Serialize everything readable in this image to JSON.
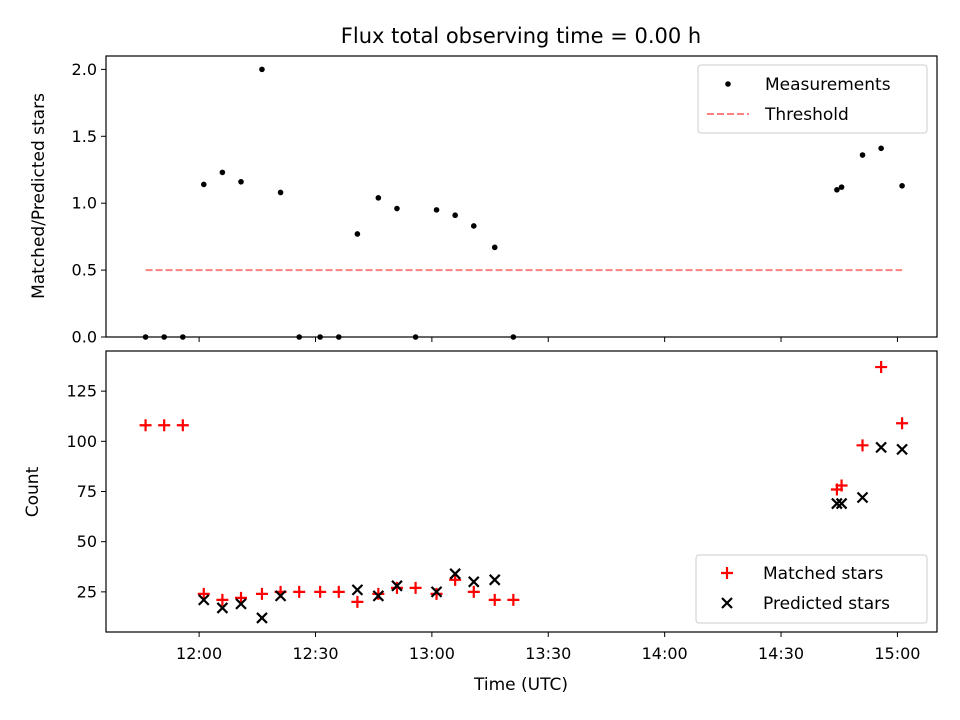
{
  "colors": {
    "measurement": "#000000",
    "threshold": "#ff8080",
    "matched": "#ff0000",
    "predicted": "#000000"
  },
  "chart_data": [
    {
      "type": "scatter",
      "title": "Flux total observing time = 0.00 h",
      "xlabel": "",
      "ylabel": "Matched/Predicted stars",
      "xlim": [
        11.6,
        15.17
      ],
      "ylim": [
        0,
        2.1
      ],
      "yticks": [
        0.0,
        0.5,
        1.0,
        1.5,
        2.0
      ],
      "ytick_labels": [
        "0.0",
        "0.5",
        "1.0",
        "1.5",
        "2.0"
      ],
      "legend": [
        "Measurements",
        "Threshold"
      ],
      "legend_position": "top-right",
      "threshold": {
        "value": 0.5,
        "x_range": [
          11.77,
          15.02
        ]
      },
      "series": [
        {
          "name": "Measurements",
          "x": [
            11.77,
            11.85,
            11.93,
            12.02,
            12.1,
            12.18,
            12.27,
            12.35,
            12.43,
            12.52,
            12.6,
            12.68,
            12.77,
            12.85,
            12.93,
            13.02,
            13.1,
            13.18,
            13.27,
            13.35,
            14.74,
            14.76,
            14.85,
            14.93,
            15.02
          ],
          "y": [
            0.0,
            0.0,
            0.0,
            1.14,
            1.23,
            1.16,
            2.0,
            1.08,
            0.0,
            0.0,
            0.0,
            0.77,
            1.04,
            0.96,
            0.0,
            0.95,
            0.91,
            0.83,
            0.67,
            0.0,
            1.1,
            1.12,
            1.36,
            1.41,
            1.13
          ]
        }
      ]
    },
    {
      "type": "scatter",
      "title": "",
      "xlabel": "Time (UTC)",
      "ylabel": "Count",
      "xlim": [
        11.6,
        15.17
      ],
      "ylim": [
        5,
        145
      ],
      "yticks": [
        25,
        50,
        75,
        100,
        125
      ],
      "ytick_labels": [
        "25",
        "50",
        "75",
        "100",
        "125"
      ],
      "xticks": [
        12.0,
        12.5,
        13.0,
        13.5,
        14.0,
        14.5,
        15.0
      ],
      "xtick_labels": [
        "12:00",
        "12:30",
        "13:00",
        "13:30",
        "14:00",
        "14:30",
        "15:00"
      ],
      "legend": [
        "Matched stars",
        "Predicted stars"
      ],
      "legend_position": "bottom-right",
      "series": [
        {
          "name": "Matched stars",
          "marker": "+",
          "x": [
            11.77,
            11.85,
            11.93,
            12.02,
            12.1,
            12.18,
            12.27,
            12.35,
            12.43,
            12.52,
            12.6,
            12.68,
            12.77,
            12.85,
            12.93,
            13.02,
            13.1,
            13.18,
            13.27,
            13.35,
            14.74,
            14.76,
            14.85,
            14.93,
            15.02
          ],
          "y": [
            108,
            108,
            108,
            24,
            21,
            22,
            24,
            25,
            25,
            25,
            25,
            20,
            24,
            27,
            27,
            24,
            31,
            25,
            21,
            21,
            76,
            78,
            98,
            137,
            109
          ]
        },
        {
          "name": "Predicted stars",
          "marker": "x",
          "x": [
            12.02,
            12.1,
            12.18,
            12.27,
            12.35,
            12.68,
            12.77,
            12.85,
            13.02,
            13.1,
            13.18,
            13.27,
            14.74,
            14.76,
            14.85,
            14.93,
            15.02
          ],
          "y": [
            21,
            17,
            19,
            12,
            23,
            26,
            23,
            28,
            25,
            34,
            30,
            31,
            69,
            69,
            72,
            97,
            96
          ]
        }
      ]
    }
  ]
}
